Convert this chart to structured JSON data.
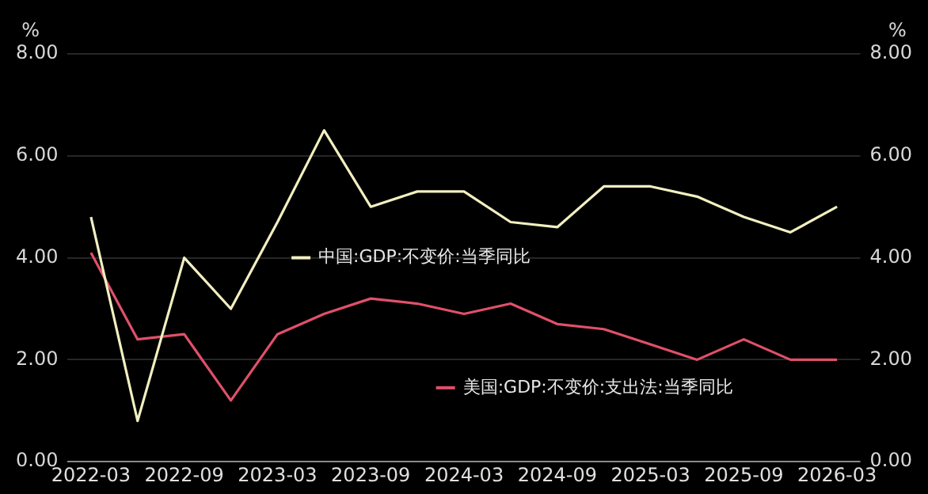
{
  "chart_data": {
    "type": "line",
    "categories": [
      "2022-03",
      null,
      "2022-09",
      null,
      "2023-03",
      null,
      "2023-09",
      null,
      "2024-03",
      null,
      "2024-09",
      null,
      "2025-03",
      null,
      "2025-09",
      null,
      "2026-03"
    ],
    "series": [
      {
        "name": "中国:GDP:不变价:当季同比",
        "color": "#f2efc0",
        "values": [
          4.8,
          0.8,
          4.0,
          3.0,
          4.7,
          6.5,
          5.0,
          5.3,
          5.3,
          4.7,
          4.6,
          5.4,
          5.4,
          5.2,
          4.8,
          4.5,
          5.0
        ]
      },
      {
        "name": "美国:GDP:不变价:支出法:当季同比",
        "color": "#e0506a",
        "values": [
          4.1,
          2.4,
          2.5,
          1.2,
          2.5,
          2.9,
          3.2,
          3.1,
          2.9,
          3.1,
          2.7,
          2.6,
          2.3,
          2.0,
          2.4,
          2.0,
          2.0
        ]
      }
    ],
    "ylabel": "%",
    "y2label": "%",
    "ylim": [
      0,
      8
    ],
    "yticks": [
      {
        "value": 0,
        "label": "0.00"
      },
      {
        "value": 2,
        "label": "2.00"
      },
      {
        "value": 4,
        "label": "4.00"
      },
      {
        "value": 6,
        "label": "6.00"
      },
      {
        "value": 8,
        "label": "8.00"
      }
    ],
    "y2lim": [
      0,
      8
    ],
    "y2ticks": [
      {
        "value": 0,
        "label": "0.00"
      },
      {
        "value": 2,
        "label": "2.00"
      },
      {
        "value": 4,
        "label": "4.00"
      },
      {
        "value": 6,
        "label": "6.00"
      },
      {
        "value": 8,
        "label": "8.00"
      }
    ],
    "grid": "y",
    "legend": "bottom right",
    "marker": "none",
    "line_style": "solid"
  }
}
